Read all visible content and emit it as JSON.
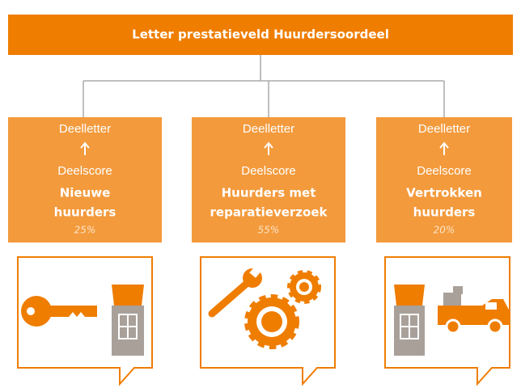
{
  "header": {
    "title": "Letter prestatieveld Huurdersoordeel"
  },
  "boxes": [
    {
      "top": "Deelletter",
      "bottom": "Deelscore",
      "name_lines": [
        "Nieuwe",
        "huurders"
      ],
      "weight": "25%"
    },
    {
      "top": "Deelletter",
      "bottom": "Deelscore",
      "name_lines": [
        "Huurders met",
        "reparatieverzoek"
      ],
      "weight": "55%"
    },
    {
      "top": "Deelletter",
      "bottom": "Deelscore",
      "name_lines": [
        "Vertrokken",
        "huurders"
      ],
      "weight": "20%"
    }
  ]
}
